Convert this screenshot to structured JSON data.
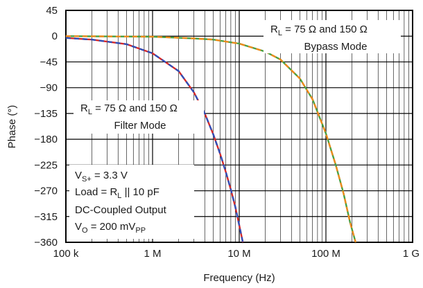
{
  "chart_data": {
    "type": "line",
    "title": "",
    "xlabel": "Frequency (Hz)",
    "ylabel": "Phase (°)",
    "x_scale": "log",
    "xlim": [
      100000,
      1000000000
    ],
    "ylim": [
      -360,
      45
    ],
    "grid": true,
    "x_ticks": [
      {
        "value": 100000,
        "label": "100 k"
      },
      {
        "value": 1000000,
        "label": "1 M"
      },
      {
        "value": 10000000,
        "label": "10 M"
      },
      {
        "value": 100000000,
        "label": "100 M"
      },
      {
        "value": 1000000000,
        "label": "1 G"
      }
    ],
    "y_ticks": [
      {
        "value": 45,
        "label": "45"
      },
      {
        "value": 0,
        "label": "0"
      },
      {
        "value": -45,
        "label": "−45"
      },
      {
        "value": -90,
        "label": "−90"
      },
      {
        "value": -135,
        "label": "−135"
      },
      {
        "value": -180,
        "label": "−180"
      },
      {
        "value": -225,
        "label": "−225"
      },
      {
        "value": -270,
        "label": "−270"
      },
      {
        "value": -315,
        "label": "−315"
      },
      {
        "value": -360,
        "label": "−360"
      }
    ],
    "series": [
      {
        "group": "filter",
        "color": "#d42a2a",
        "dasharray": "",
        "x": [
          100000,
          200000,
          500000,
          1000000,
          2000000,
          3000000,
          4000000,
          5000000,
          6000000,
          7000000,
          8000000,
          9000000,
          10000000,
          11000000
        ],
        "y": [
          -3,
          -6,
          -14,
          -30,
          -61,
          -98,
          -135,
          -171,
          -205,
          -237,
          -268,
          -298,
          -330,
          -360
        ]
      },
      {
        "group": "filter",
        "color": "#2f4fb8",
        "dasharray": "7 5",
        "x": [
          100000,
          200000,
          500000,
          1000000,
          2000000,
          3000000,
          4000000,
          5000000,
          6000000,
          7000000,
          8000000,
          9000000,
          10000000,
          11000000
        ],
        "y": [
          -3,
          -6,
          -14,
          -30,
          -61,
          -98,
          -135,
          -171,
          -205,
          -237,
          -268,
          -298,
          -330,
          -360
        ]
      },
      {
        "group": "bypass",
        "color": "#4aa043",
        "dasharray": "",
        "x": [
          100000,
          1000000,
          3000000,
          5000000,
          10000000,
          20000000,
          30000000,
          50000000,
          70000000,
          100000000,
          130000000,
          160000000,
          190000000,
          220000000
        ],
        "y": [
          0,
          -1,
          -4,
          -6,
          -13,
          -27,
          -41,
          -74,
          -110,
          -170,
          -225,
          -275,
          -325,
          -360
        ]
      },
      {
        "group": "bypass",
        "color": "#f08a1c",
        "dasharray": "7 5",
        "x": [
          100000,
          1000000,
          3000000,
          5000000,
          10000000,
          20000000,
          30000000,
          50000000,
          70000000,
          100000000,
          130000000,
          160000000,
          190000000,
          220000000
        ],
        "y": [
          0,
          -1,
          -4,
          -6,
          -13,
          -27,
          -41,
          -74,
          -110,
          -170,
          -225,
          -275,
          -325,
          -360
        ]
      }
    ],
    "annotations": {
      "bypass": {
        "r": "R",
        "r_sub": "L",
        "rest": " = 75 Ω and 150 Ω",
        "mode": "Bypass Mode"
      },
      "filter": {
        "r": "R",
        "r_sub": "L",
        "rest": " = 75 Ω and 150 Ω",
        "mode": "Filter Mode"
      },
      "conditions": {
        "vs": "V",
        "vs_sub": "S+",
        "vs_rest": " = 3.3 V",
        "load": "Load = R",
        "load_sub": "L",
        "load_rest": " || 10 pF",
        "coupling": "DC-Coupled Output",
        "vo": "V",
        "vo_sub": "O",
        "vo_rest": " = 200 mV",
        "vo_sub2": "PP"
      }
    }
  }
}
